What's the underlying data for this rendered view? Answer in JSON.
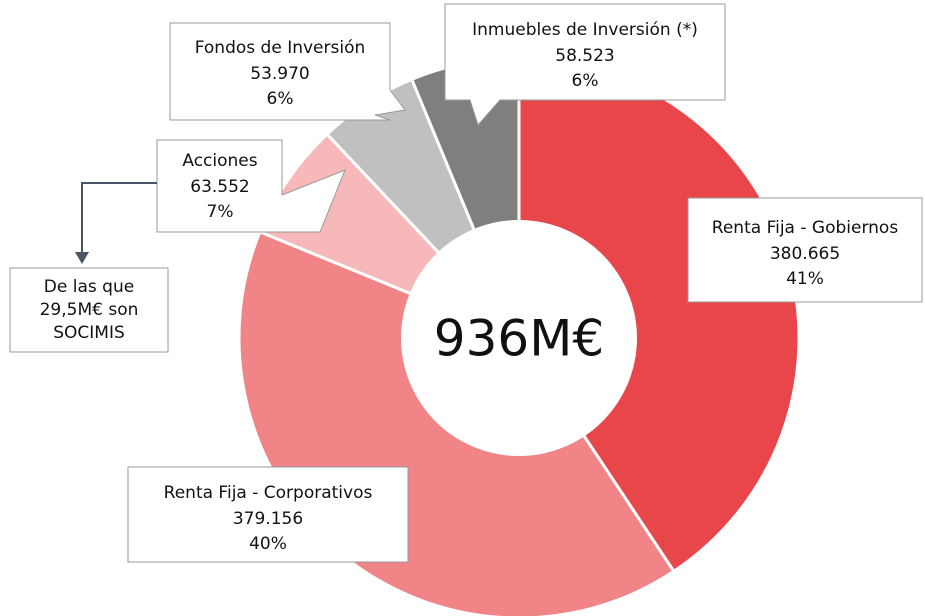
{
  "chart_data": {
    "type": "pie",
    "donut": true,
    "categories": [
      "Renta Fija - Gobiernos",
      "Renta Fija - Corporativos",
      "Acciones",
      "Fondos de Inversión",
      "Inmuebles de Inversión (*)"
    ],
    "values": [
      380665,
      379156,
      63552,
      53970,
      58523
    ],
    "value_labels": [
      "380.665",
      "379.156",
      "63.552",
      "53.970",
      "58.523"
    ],
    "percentages": [
      41,
      40,
      7,
      6,
      6
    ],
    "percentage_labels": [
      "41%",
      "40%",
      "7%",
      "6%",
      "6%"
    ],
    "colors": [
      "#e8464a",
      "#f08486",
      "#f7b8b9",
      "#c0c0c0",
      "#7f7f7f"
    ],
    "center_label": "936M€",
    "annotation": [
      "De las que",
      "29,5M€ son",
      "SOCIMIS"
    ]
  }
}
